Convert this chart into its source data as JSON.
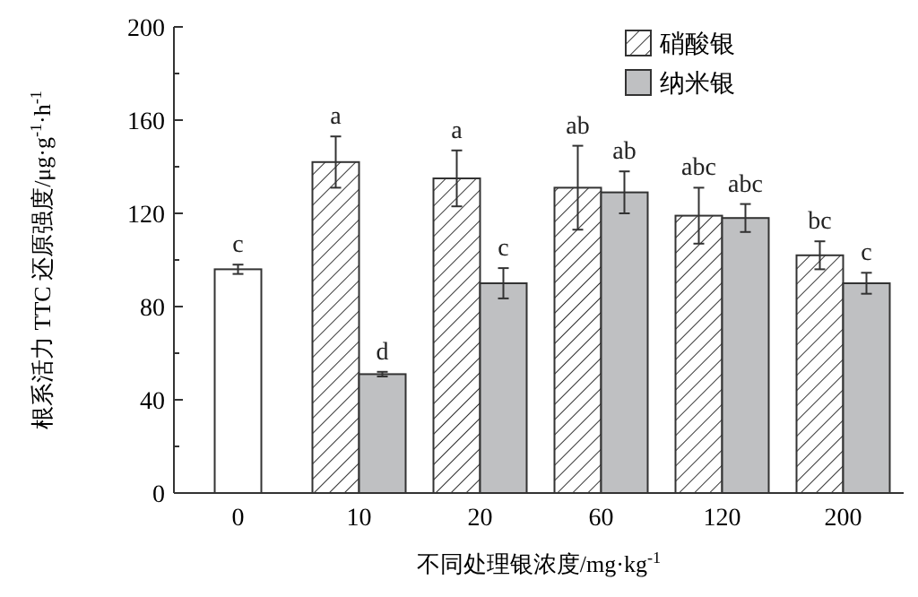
{
  "chart_data": {
    "type": "bar",
    "xlabel": "不同处理银浓度/mg·kg$^{-1}$",
    "ylabel": "根系活力 TTC 还原强度/μg·g$^{-1}$·h$^{-1}$",
    "categories": [
      "0",
      "10",
      "20",
      "60",
      "120",
      "200"
    ],
    "series": [
      {
        "color": "#ffffff",
        "values": [
          96,
          null,
          null,
          null,
          null,
          null
        ],
        "errors": [
          2,
          null,
          null,
          null,
          null,
          null
        ]
      },
      {
        "name": "硝酸银",
        "color": "#333333",
        "values": [
          null,
          142,
          135,
          131,
          119,
          102
        ],
        "errors": [
          null,
          11,
          12,
          18,
          12,
          6
        ]
      },
      {
        "name": "纳米银",
        "color": "#bfc0c2",
        "values": [
          null,
          51,
          90,
          129,
          118,
          90
        ],
        "errors": [
          null,
          1,
          6.5,
          9,
          6,
          4.5
        ]
      }
    ],
    "ylim": [
      0,
      200
    ],
    "yticks": [
      0,
      {
        "value": 20,
        "label": null
      },
      40,
      {
        "value": 60,
        "label": null
      },
      80,
      {
        "value": 100,
        "label": null
      },
      120,
      {
        "value": 140,
        "label": null
      },
      160,
      {
        "value": 180,
        "label": null
      },
      200
    ],
    "legend": "top right",
    "annotations": [
      "c",
      "a",
      "d",
      "a",
      "c",
      "ab",
      "ab",
      "abc",
      "abc",
      "bc",
      "c"
    ]
  }
}
